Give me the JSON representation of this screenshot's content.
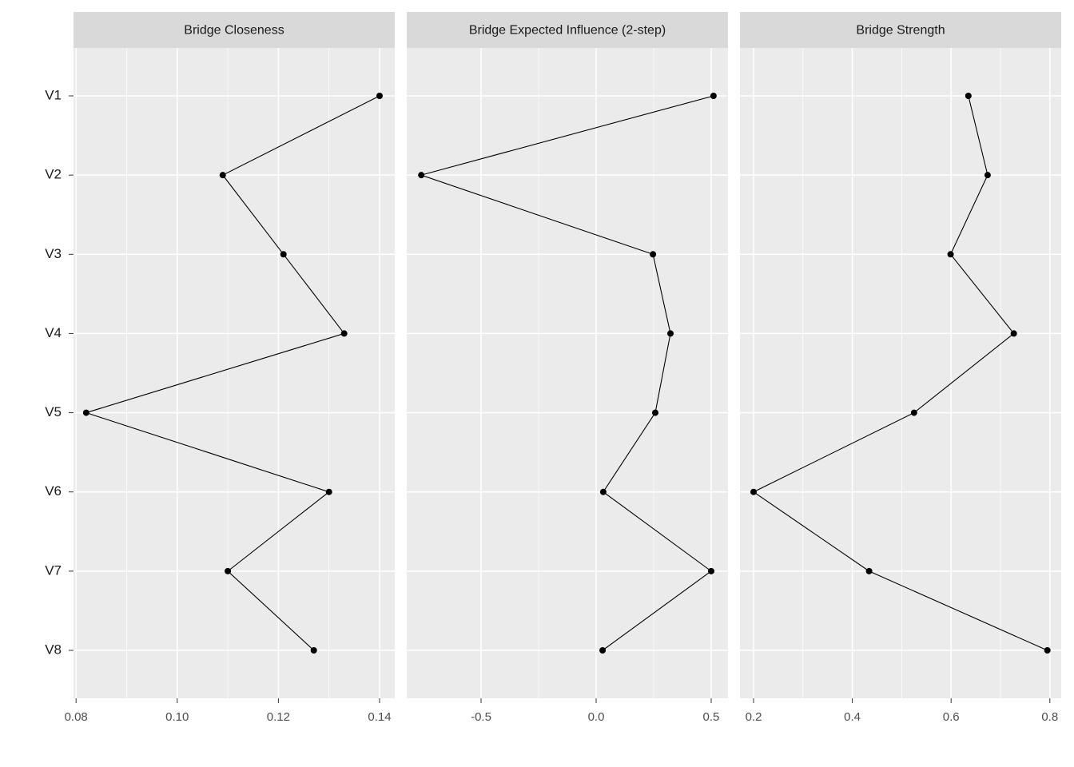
{
  "chart_data": {
    "type": "line",
    "categories": [
      "V1",
      "V2",
      "V3",
      "V4",
      "V5",
      "V6",
      "V7",
      "V8"
    ],
    "color": "#000000",
    "grid": true,
    "panels": [
      {
        "title": "Bridge Closeness",
        "values": [
          0.14,
          0.109,
          0.121,
          0.133,
          0.082,
          0.13,
          0.11,
          0.127
        ],
        "xlim": [
          0.0795,
          0.143
        ],
        "xticks": [
          0.08,
          {
            "value": 0.1,
            "label": "0.10"
          },
          0.12,
          0.14
        ]
      },
      {
        "title": "Bridge Expected Influence (2-step)",
        "values": [
          0.51,
          -0.76,
          0.247,
          0.323,
          0.257,
          0.031,
          0.5,
          0.028
        ],
        "xlim": [
          -0.823,
          0.573
        ],
        "xticks": [
          -0.5,
          {
            "value": 0,
            "label": "0.0"
          },
          0.5
        ]
      },
      {
        "title": "Bridge Strength",
        "values": [
          0.635,
          0.674,
          0.599,
          0.727,
          0.525,
          0.2,
          0.434,
          0.795
        ],
        "xlim": [
          0.1725,
          0.823
        ],
        "xticks": [
          0.2,
          0.4,
          0.6,
          0.8
        ]
      }
    ]
  }
}
